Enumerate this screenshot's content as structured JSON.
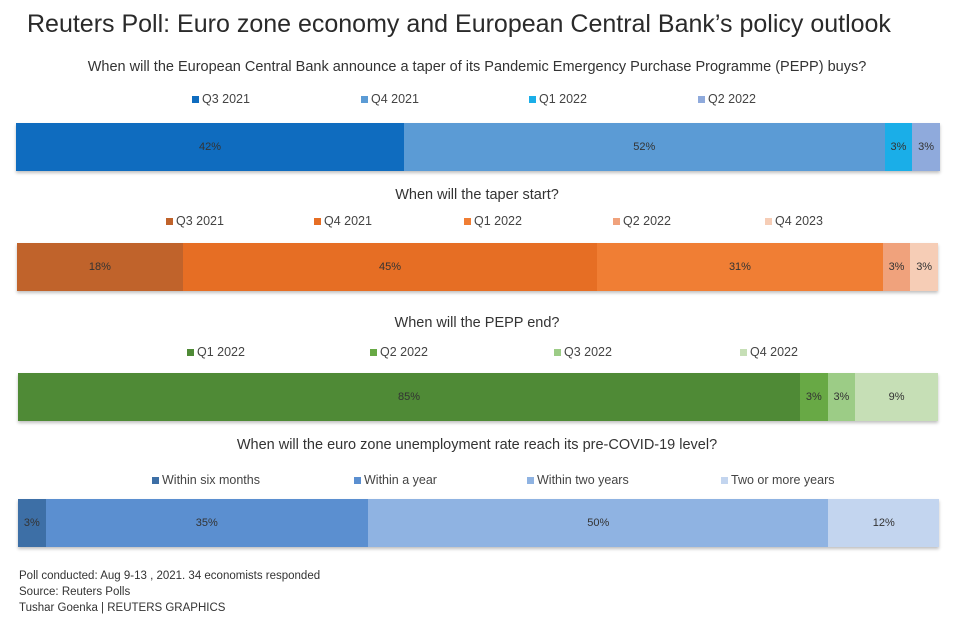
{
  "title": "Reuters Poll: Euro zone economy and European Central Bank’s policy outlook",
  "chart_data": [
    {
      "type": "bar",
      "stacked": true,
      "orientation": "horizontal",
      "title": "When will the European Central Bank announce a taper of its Pandemic Emergency Purchase Programme (PEPP) buys?",
      "unit": "%",
      "series": [
        {
          "name": "Q3 2021",
          "value": 42,
          "label": "42%",
          "color": "#0f6cbf"
        },
        {
          "name": "Q4 2021",
          "value": 52,
          "label": "52%",
          "color": "#5b9bd5"
        },
        {
          "name": "Q1 2022",
          "value": 3,
          "label": "3%",
          "color": "#1aaee8"
        },
        {
          "name": "Q2 2022",
          "value": 3,
          "label": "3%",
          "color": "#8faadc"
        }
      ]
    },
    {
      "type": "bar",
      "stacked": true,
      "orientation": "horizontal",
      "title": "When will the taper start?",
      "unit": "%",
      "series": [
        {
          "name": "Q3 2021",
          "value": 18,
          "label": "18%",
          "color": "#c0632b"
        },
        {
          "name": "Q4 2021",
          "value": 45,
          "label": "45%",
          "color": "#e66e24"
        },
        {
          "name": "Q1 2022",
          "value": 31,
          "label": "31%",
          "color": "#f07e34"
        },
        {
          "name": "Q2 2022",
          "value": 3,
          "label": "3%",
          "color": "#f0a27c"
        },
        {
          "name": "Q4 2023",
          "value": 3,
          "label": "3%",
          "color": "#f6cdb6"
        }
      ]
    },
    {
      "type": "bar",
      "stacked": true,
      "orientation": "horizontal",
      "title": "When will the PEPP end?",
      "unit": "%",
      "series": [
        {
          "name": "Q1 2022",
          "value": 85,
          "label": "85%",
          "color": "#4f8a36"
        },
        {
          "name": "Q2 2022",
          "value": 3,
          "label": "3%",
          "color": "#68a945"
        },
        {
          "name": "Q3 2022",
          "value": 3,
          "label": "3%",
          "color": "#9ccc86"
        },
        {
          "name": "Q4 2022",
          "value": 9,
          "label": "9%",
          "color": "#c6dfb6"
        }
      ]
    },
    {
      "type": "bar",
      "stacked": true,
      "orientation": "horizontal",
      "title": "When will the euro zone unemployment rate reach its pre-COVID-19 level?",
      "unit": "%",
      "series": [
        {
          "name": "Within six months",
          "value": 3,
          "label": "3%",
          "color": "#3d6fa6"
        },
        {
          "name": "Within a year",
          "value": 35,
          "label": "35%",
          "color": "#5b8fd0"
        },
        {
          "name": "Within two years",
          "value": 50,
          "label": "50%",
          "color": "#8fb3e2"
        },
        {
          "name": "Two or more years",
          "value": 12,
          "label": "12%",
          "color": "#c3d5ef"
        }
      ]
    }
  ],
  "footer": {
    "line1": "Poll conducted: Aug 9-13 , 2021. 34 economists responded",
    "line2": "Source: Reuters Polls",
    "line3": "Tushar Goenka | REUTERS GRAPHICS"
  }
}
